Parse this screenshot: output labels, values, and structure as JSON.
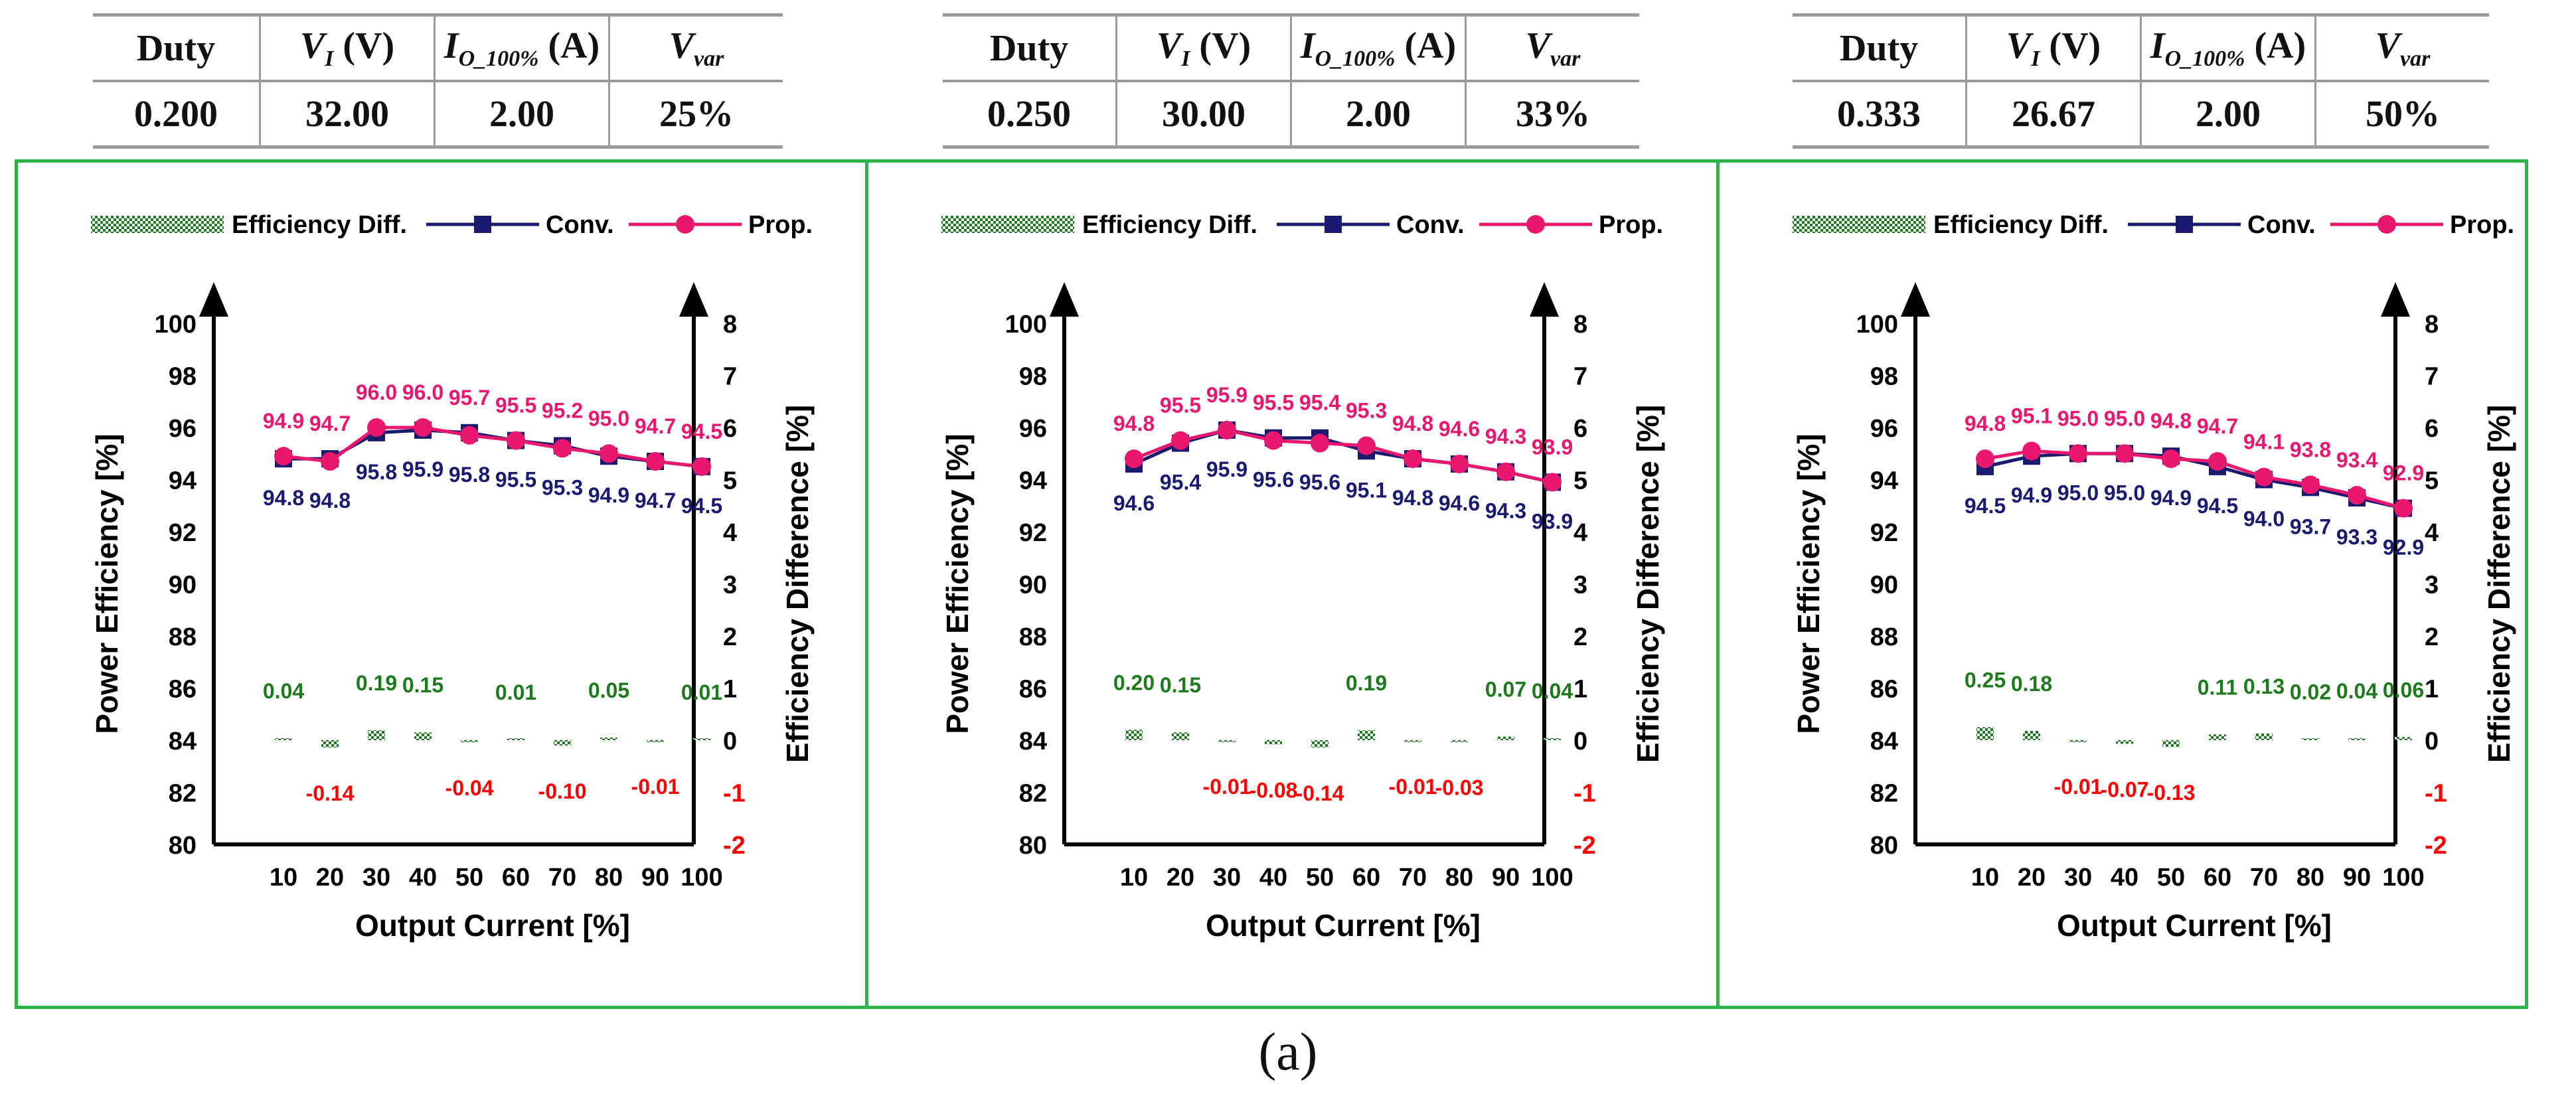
{
  "tables": [
    {
      "headers": [
        "Duty",
        "V_I (V)",
        "I_O_100% (A)",
        "V_var"
      ],
      "values": [
        "0.200",
        "32.00",
        "2.00",
        "25%"
      ]
    },
    {
      "headers": [
        "Duty",
        "V_I (V)",
        "I_O_100% (A)",
        "V_var"
      ],
      "values": [
        "0.250",
        "30.00",
        "2.00",
        "33%"
      ]
    },
    {
      "headers": [
        "Duty",
        "V_I (V)",
        "I_O_100% (A)",
        "V_var"
      ],
      "values": [
        "0.333",
        "26.67",
        "2.00",
        "50%"
      ]
    }
  ],
  "caption": "(a)",
  "colors": {
    "conv": "#1a1a6e",
    "prop": "#e8186f",
    "diff": "#1e7a1e",
    "neg_label": "#ff0000",
    "frame": "#2db34a"
  },
  "chart_data": [
    {
      "type": "line",
      "legend": [
        "Efficiency Diff.",
        "Conv.",
        "Prop."
      ],
      "legend_placement": "top",
      "xlabel": "Output Current [%]",
      "ylabel": "Power Efficiency [%]",
      "y2label": "Efficiency Difference [%]",
      "ylim": [
        80,
        100
      ],
      "y2lim": [
        -2,
        8
      ],
      "yticks": [
        "80",
        "82",
        "84",
        "86",
        "88",
        "90",
        "92",
        "94",
        "96",
        "98",
        "100"
      ],
      "y2ticks": [
        "-2",
        "-1",
        "0",
        "1",
        "2",
        "3",
        "4",
        "5",
        "6",
        "7",
        "8"
      ],
      "x": [
        "10",
        "20",
        "30",
        "40",
        "50",
        "60",
        "70",
        "80",
        "90",
        "100"
      ],
      "series": [
        {
          "name": "Conv.",
          "values": [
            94.8,
            94.8,
            95.8,
            95.9,
            95.8,
            95.5,
            95.3,
            94.9,
            94.7,
            94.5
          ],
          "labels": [
            "94.8",
            "94.8",
            "95.8",
            "95.9",
            "95.8",
            "95.5",
            "95.3",
            "94.9",
            "94.7",
            "94.5"
          ]
        },
        {
          "name": "Prop.",
          "values": [
            94.9,
            94.7,
            96.0,
            96.0,
            95.7,
            95.5,
            95.2,
            95.0,
            94.7,
            94.5
          ],
          "labels": [
            "94.9",
            "94.7",
            "96.0",
            "96.0",
            "95.7",
            "95.5",
            "95.2",
            "95.0",
            "94.7",
            "94.5"
          ]
        },
        {
          "name": "Efficiency Diff.",
          "axis": "right",
          "values": [
            0.04,
            -0.14,
            0.19,
            0.15,
            -0.04,
            0.01,
            -0.1,
            0.05,
            -0.01,
            0.01
          ],
          "labels": [
            "0.04",
            "-0.14",
            "0.19",
            "0.15",
            "-0.04",
            "0.01",
            "-0.10",
            "0.05",
            "-0.01",
            "0.01"
          ]
        }
      ]
    },
    {
      "type": "line",
      "legend": [
        "Efficiency Diff.",
        "Conv.",
        "Prop."
      ],
      "legend_placement": "top",
      "xlabel": "Output Current [%]",
      "ylabel": "Power Efficiency [%]",
      "y2label": "Efficiency Difference [%]",
      "ylim": [
        80,
        100
      ],
      "y2lim": [
        -2,
        8
      ],
      "yticks": [
        "80",
        "82",
        "84",
        "86",
        "88",
        "90",
        "92",
        "94",
        "96",
        "98",
        "100"
      ],
      "y2ticks": [
        "-2",
        "-1",
        "0",
        "1",
        "2",
        "3",
        "4",
        "5",
        "6",
        "7",
        "8"
      ],
      "x": [
        "10",
        "20",
        "30",
        "40",
        "50",
        "60",
        "70",
        "80",
        "90",
        "100"
      ],
      "series": [
        {
          "name": "Conv.",
          "values": [
            94.6,
            95.4,
            95.9,
            95.6,
            95.6,
            95.1,
            94.8,
            94.6,
            94.3,
            93.9
          ],
          "labels": [
            "94.6",
            "95.4",
            "95.9",
            "95.6",
            "95.6",
            "95.1",
            "94.8",
            "94.6",
            "94.3",
            "93.9"
          ]
        },
        {
          "name": "Prop.",
          "values": [
            94.8,
            95.5,
            95.9,
            95.5,
            95.4,
            95.3,
            94.8,
            94.6,
            94.3,
            93.9
          ],
          "labels": [
            "94.8",
            "95.5",
            "95.9",
            "95.5",
            "95.4",
            "95.3",
            "94.8",
            "94.6",
            "94.3",
            "93.9"
          ]
        },
        {
          "name": "Efficiency Diff.",
          "axis": "right",
          "values": [
            0.2,
            0.15,
            -0.01,
            -0.08,
            -0.14,
            0.19,
            -0.01,
            -0.03,
            0.07,
            0.04
          ],
          "labels": [
            "0.20",
            "0.15",
            "-0.01",
            "-0.08",
            "-0.14",
            "0.19",
            "-0.01",
            "-0.03",
            "0.07",
            "0.04"
          ]
        }
      ]
    },
    {
      "type": "line",
      "legend": [
        "Efficiency Diff.",
        "Conv.",
        "Prop."
      ],
      "legend_placement": "top",
      "xlabel": "Output Current [%]",
      "ylabel": "Power Efficiency [%]",
      "y2label": "Efficiency Difference [%]",
      "ylim": [
        80,
        100
      ],
      "y2lim": [
        -2,
        8
      ],
      "yticks": [
        "80",
        "82",
        "84",
        "86",
        "88",
        "90",
        "92",
        "94",
        "96",
        "98",
        "100"
      ],
      "y2ticks": [
        "-2",
        "-1",
        "0",
        "1",
        "2",
        "3",
        "4",
        "5",
        "6",
        "7",
        "8"
      ],
      "x": [
        "10",
        "20",
        "30",
        "40",
        "50",
        "60",
        "70",
        "80",
        "90",
        "100"
      ],
      "series": [
        {
          "name": "Conv.",
          "values": [
            94.5,
            94.9,
            95.0,
            95.0,
            94.9,
            94.5,
            94.0,
            93.7,
            93.3,
            92.9
          ],
          "labels": [
            "94.5",
            "94.9",
            "95.0",
            "95.0",
            "94.9",
            "94.5",
            "94.0",
            "93.7",
            "93.3",
            "92.9"
          ]
        },
        {
          "name": "Prop.",
          "values": [
            94.8,
            95.1,
            95.0,
            95.0,
            94.8,
            94.7,
            94.1,
            93.8,
            93.4,
            92.9
          ],
          "labels": [
            "94.8",
            "95.1",
            "95.0",
            "95.0",
            "94.8",
            "94.7",
            "94.1",
            "93.8",
            "93.4",
            "92.9"
          ]
        },
        {
          "name": "Efficiency Diff.",
          "axis": "right",
          "values": [
            0.25,
            0.18,
            -0.01,
            -0.07,
            -0.13,
            0.11,
            0.13,
            0.02,
            0.04,
            0.06
          ],
          "labels": [
            "0.25",
            "0.18",
            "-0.01",
            "-0.07",
            "-0.13",
            "0.11",
            "0.13",
            "0.02",
            "0.04",
            "0.06"
          ]
        }
      ]
    }
  ]
}
